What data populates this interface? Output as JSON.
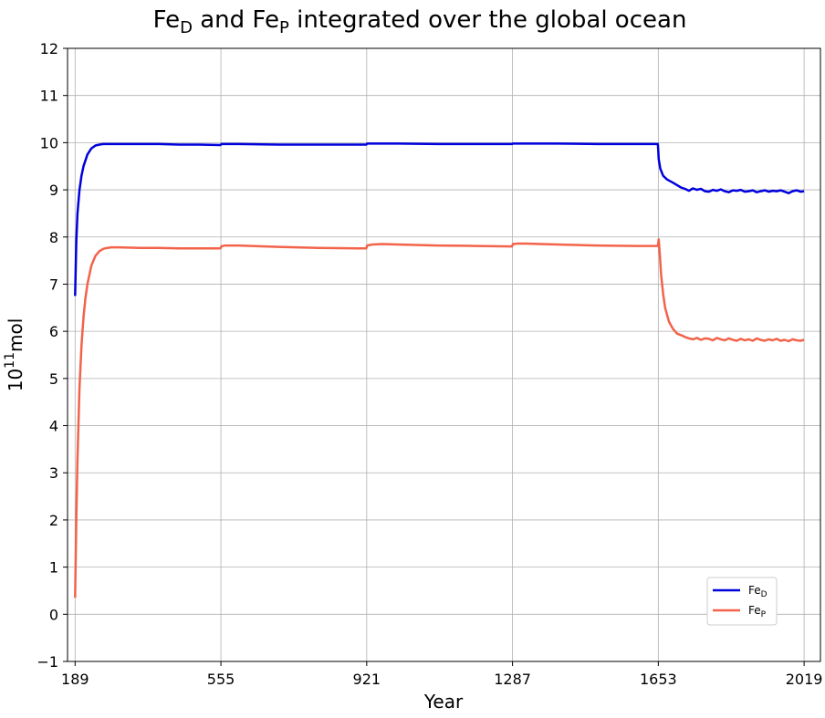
{
  "chart_data": {
    "type": "line",
    "title": {
      "main1": "Fe",
      "sub1": "D",
      "main2": " and Fe",
      "sub2": "P",
      "main3": " integrated over the global ocean"
    },
    "xlabel": "Year",
    "ylabel": {
      "base": "10",
      "exp": "11",
      "unit": "mol"
    },
    "xlim": [
      170,
      2060
    ],
    "ylim": [
      -1,
      12
    ],
    "xticks": [
      189,
      555,
      921,
      1287,
      1653,
      2019
    ],
    "yticks": [
      -1,
      0,
      1,
      2,
      3,
      4,
      5,
      6,
      7,
      8,
      9,
      10,
      11,
      12
    ],
    "grid": true,
    "legend_position": "lower-right",
    "series": [
      {
        "name_main": "Fe",
        "name_sub": "D",
        "color": "#0000dd",
        "x": [
          189,
          192,
          195,
          200,
          205,
          210,
          220,
          230,
          240,
          250,
          260,
          280,
          300,
          350,
          400,
          450,
          500,
          554,
          556,
          600,
          700,
          800,
          900,
          920,
          922,
          1000,
          1100,
          1200,
          1286,
          1288,
          1400,
          1500,
          1600,
          1652,
          1654,
          1658,
          1665,
          1675,
          1690,
          1700,
          1710,
          1720,
          1730,
          1740,
          1750,
          1760,
          1770,
          1780,
          1790,
          1800,
          1810,
          1820,
          1830,
          1840,
          1850,
          1860,
          1870,
          1880,
          1890,
          1900,
          1910,
          1920,
          1930,
          1940,
          1950,
          1960,
          1970,
          1980,
          1990,
          2000,
          2010,
          2019
        ],
        "y": [
          6.75,
          7.9,
          8.5,
          9.0,
          9.3,
          9.5,
          9.75,
          9.88,
          9.94,
          9.96,
          9.97,
          9.97,
          9.97,
          9.97,
          9.97,
          9.96,
          9.96,
          9.95,
          9.97,
          9.97,
          9.96,
          9.96,
          9.96,
          9.96,
          9.98,
          9.98,
          9.97,
          9.97,
          9.97,
          9.98,
          9.98,
          9.97,
          9.97,
          9.97,
          9.65,
          9.45,
          9.3,
          9.22,
          9.15,
          9.1,
          9.05,
          9.02,
          8.98,
          9.03,
          9.0,
          9.02,
          8.97,
          8.96,
          9.0,
          8.98,
          9.01,
          8.97,
          8.95,
          8.99,
          8.98,
          9.0,
          8.96,
          8.97,
          8.99,
          8.95,
          8.97,
          8.99,
          8.96,
          8.98,
          8.97,
          8.99,
          8.96,
          8.93,
          8.97,
          8.99,
          8.96,
          8.97
        ]
      },
      {
        "name_main": "Fe",
        "name_sub": "P",
        "color": "#f2634a",
        "x": [
          189,
          192,
          195,
          200,
          205,
          210,
          215,
          220,
          230,
          240,
          250,
          260,
          270,
          280,
          300,
          350,
          400,
          450,
          500,
          554,
          556,
          565,
          580,
          600,
          700,
          800,
          900,
          920,
          922,
          935,
          960,
          1000,
          1100,
          1200,
          1286,
          1288,
          1300,
          1320,
          1400,
          1500,
          1600,
          1652,
          1654,
          1657,
          1660,
          1665,
          1670,
          1680,
          1690,
          1700,
          1710,
          1720,
          1730,
          1740,
          1750,
          1760,
          1770,
          1780,
          1790,
          1800,
          1810,
          1820,
          1830,
          1840,
          1850,
          1860,
          1870,
          1880,
          1890,
          1900,
          1910,
          1920,
          1930,
          1940,
          1950,
          1960,
          1970,
          1980,
          1990,
          2000,
          2010,
          2019
        ],
        "y": [
          0.35,
          2.0,
          3.3,
          4.8,
          5.7,
          6.3,
          6.7,
          7.0,
          7.4,
          7.6,
          7.7,
          7.75,
          7.77,
          7.78,
          7.78,
          7.77,
          7.77,
          7.76,
          7.76,
          7.76,
          7.8,
          7.82,
          7.82,
          7.82,
          7.79,
          7.77,
          7.76,
          7.76,
          7.82,
          7.84,
          7.85,
          7.84,
          7.82,
          7.81,
          7.8,
          7.85,
          7.86,
          7.86,
          7.84,
          7.82,
          7.81,
          7.81,
          7.95,
          7.6,
          7.2,
          6.8,
          6.5,
          6.2,
          6.05,
          5.95,
          5.92,
          5.88,
          5.85,
          5.83,
          5.86,
          5.82,
          5.85,
          5.84,
          5.81,
          5.86,
          5.83,
          5.81,
          5.85,
          5.82,
          5.8,
          5.84,
          5.81,
          5.83,
          5.8,
          5.85,
          5.82,
          5.8,
          5.83,
          5.81,
          5.84,
          5.8,
          5.82,
          5.79,
          5.83,
          5.81,
          5.8,
          5.82
        ]
      }
    ]
  }
}
